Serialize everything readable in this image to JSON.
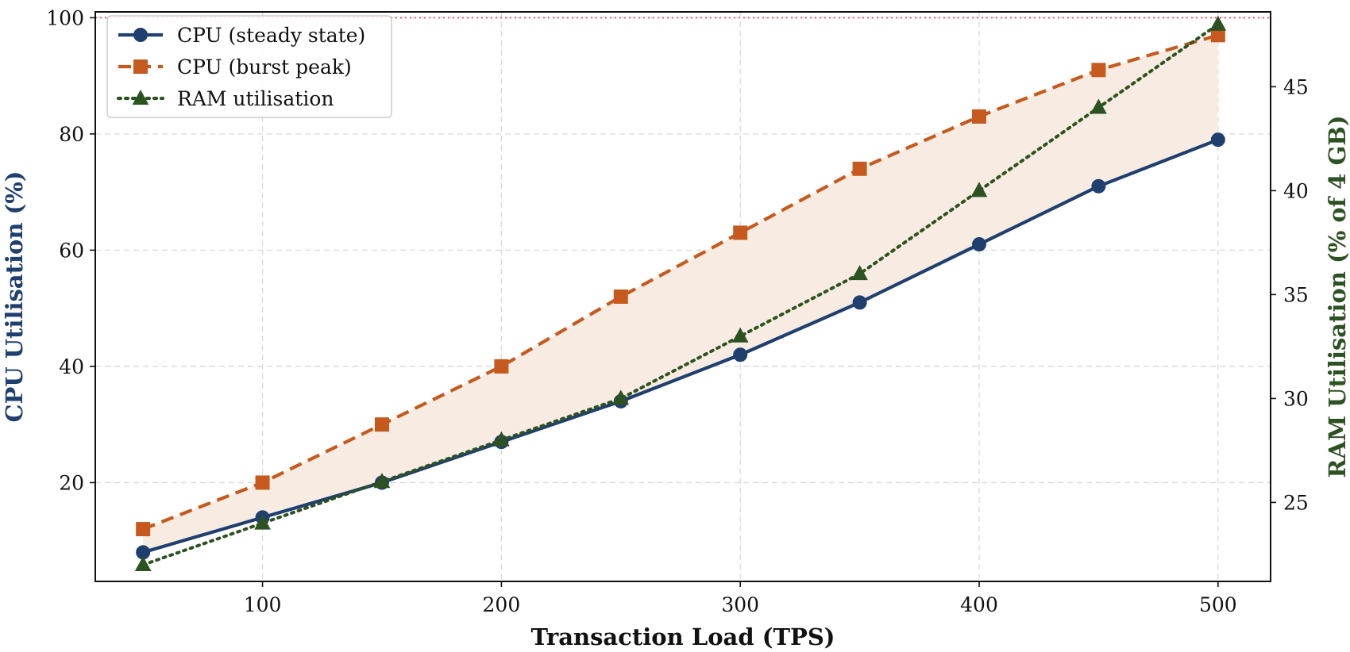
{
  "chart_data": {
    "type": "line",
    "xlabel": "Transaction Load (TPS)",
    "ylabel": "CPU Utilisation (%)",
    "y2label": "RAM Utilisation (% of 4 GB)",
    "xlim": [
      30,
      522
    ],
    "ylim": [
      3,
      101
    ],
    "y2lim": [
      21.2,
      48.6
    ],
    "x_ticks": [
      100,
      200,
      300,
      400,
      500
    ],
    "y_ticks": [
      20,
      40,
      60,
      80,
      100
    ],
    "y2_ticks": [
      25,
      30,
      35,
      40,
      45
    ],
    "grid": true,
    "legend_position": "top-left",
    "reference_line": {
      "axis": "y",
      "value": 100,
      "color": "#e8535f",
      "style": "dotted"
    },
    "fill_between": {
      "lower": "CPU (steady state)",
      "upper": "CPU (burst peak)",
      "color": "#f8ebe1"
    },
    "x": [
      50,
      100,
      150,
      200,
      250,
      300,
      350,
      400,
      450,
      500
    ],
    "series": [
      {
        "name": "CPU (steady state)",
        "axis": "left",
        "color": "#1f3f6e",
        "style": "solid",
        "marker": "circle",
        "values": [
          8,
          14,
          20,
          27,
          34,
          42,
          51,
          61,
          71,
          79
        ]
      },
      {
        "name": "CPU (burst peak)",
        "axis": "left",
        "color": "#c65a1e",
        "style": "dashed",
        "marker": "square",
        "values": [
          12,
          20,
          30,
          40,
          52,
          63,
          74,
          83,
          91,
          97
        ]
      },
      {
        "name": "RAM utilisation",
        "axis": "right",
        "color": "#2d5222",
        "style": "dotted",
        "marker": "triangle",
        "values": [
          22,
          24,
          26,
          28,
          30,
          33,
          36,
          40,
          44,
          48
        ]
      }
    ],
    "axis_title_colors": {
      "left": "#1f3f6e",
      "right": "#2d5222",
      "bottom": "#111111"
    }
  }
}
